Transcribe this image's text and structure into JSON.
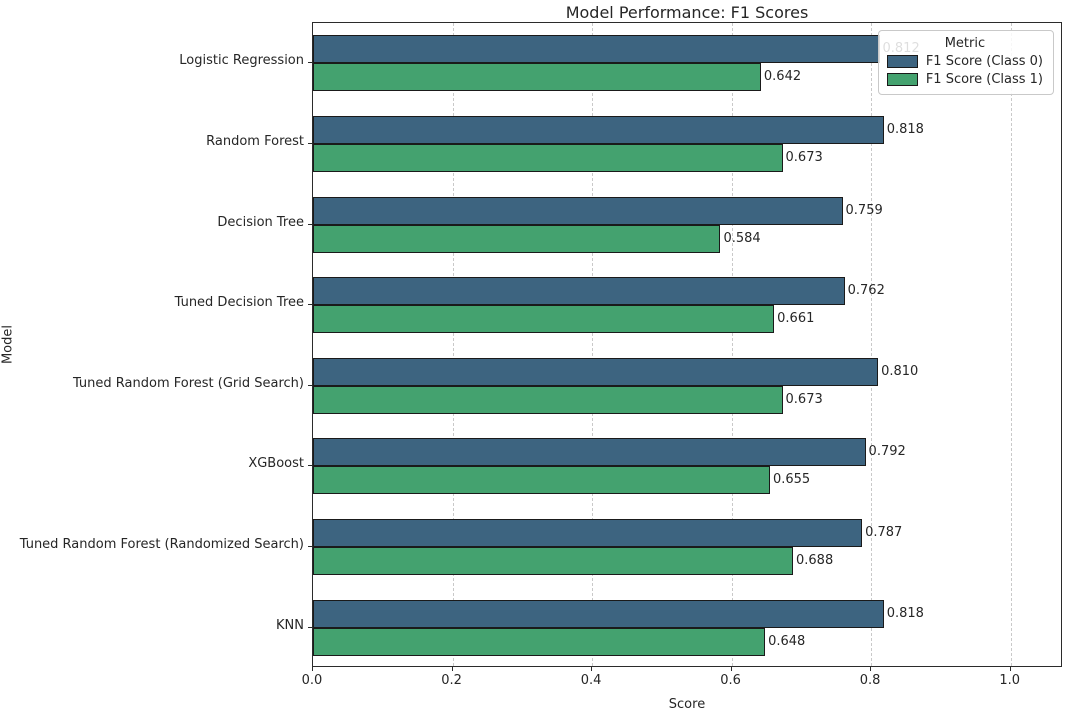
{
  "title": "Model Performance: F1 Scores",
  "chart_data": {
    "type": "bar",
    "orientation": "horizontal",
    "title": "Model Performance: F1 Scores",
    "xlabel": "Score",
    "ylabel": "Model",
    "xlim": [
      0,
      1.075
    ],
    "xticks": [
      "0.0",
      "0.2",
      "0.4",
      "0.6",
      "0.8",
      "1.0"
    ],
    "xtick_values": [
      0.0,
      0.2,
      0.4,
      0.6,
      0.8,
      1.0
    ],
    "grid": "vertical-dashed",
    "grid_color": "#c9c9c9",
    "bar_edge_color": "#1a1a1a",
    "categories": [
      "Logistic Regression",
      "Random Forest",
      "Decision Tree",
      "Tuned Decision Tree",
      "Tuned Random Forest (Grid Search)",
      "XGBoost",
      "Tuned Random Forest (Randomized Search)",
      "KNN"
    ],
    "series": [
      {
        "name": "F1 Score (Class 0)",
        "color": "#3d6480",
        "values": [
          0.812,
          0.818,
          0.759,
          0.762,
          0.81,
          0.792,
          0.787,
          0.818
        ]
      },
      {
        "name": "F1 Score (Class 1)",
        "color": "#44a26f",
        "values": [
          0.642,
          0.673,
          0.584,
          0.661,
          0.673,
          0.655,
          0.688,
          0.648
        ]
      }
    ],
    "value_labels": [
      "0.812",
      "0.642",
      "0.818",
      "0.673",
      "0.759",
      "0.584",
      "0.762",
      "0.661",
      "0.810",
      "0.673",
      "0.792",
      "0.655",
      "0.787",
      "0.688",
      "0.818",
      "0.648"
    ],
    "legend": {
      "title": "Metric",
      "position": "upper right"
    }
  }
}
